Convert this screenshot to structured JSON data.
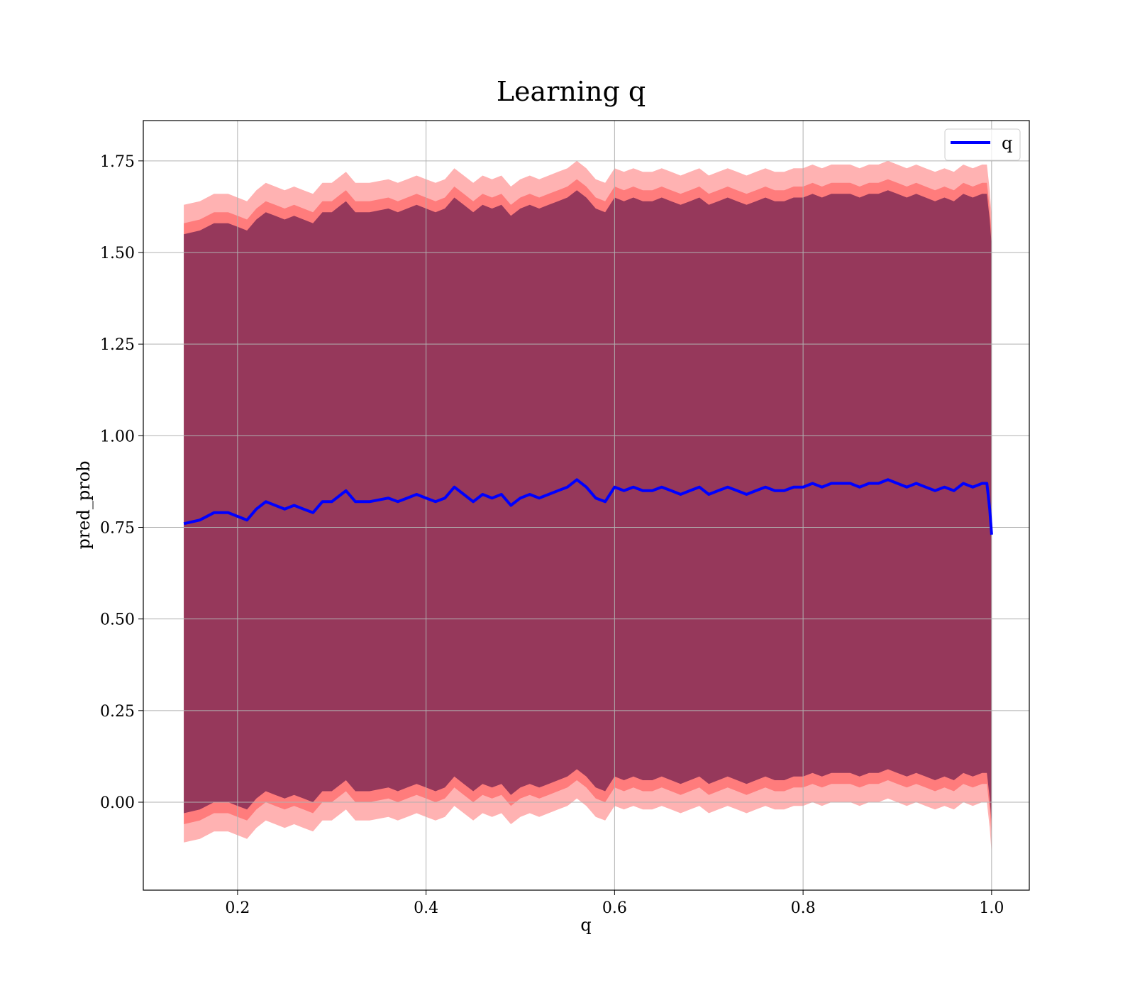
{
  "chart_data": {
    "type": "line",
    "title": "Learning q",
    "xlabel": "q",
    "ylabel": "pred_prob",
    "xlim": [
      0.1,
      1.04
    ],
    "ylim": [
      -0.24,
      1.86
    ],
    "grid": true,
    "legend": {
      "placement": "top-right",
      "entries": [
        "q"
      ]
    },
    "x_ticks": [
      0.2,
      0.4,
      0.6,
      0.8,
      1.0
    ],
    "x_tick_labels": [
      "0.2",
      "0.4",
      "0.6",
      "0.8",
      "1.0"
    ],
    "y_ticks": [
      0.0,
      0.25,
      0.5,
      0.75,
      1.0,
      1.25,
      1.5,
      1.75
    ],
    "y_tick_labels": [
      "0.00",
      "0.25",
      "0.50",
      "0.75",
      "1.00",
      "1.25",
      "1.50",
      "1.75"
    ],
    "series": [
      {
        "name": "q",
        "color": "#0000ff",
        "x": [
          0.143,
          0.16,
          0.175,
          0.19,
          0.2,
          0.21,
          0.22,
          0.23,
          0.24,
          0.25,
          0.26,
          0.27,
          0.28,
          0.29,
          0.3,
          0.31,
          0.315,
          0.325,
          0.34,
          0.36,
          0.37,
          0.38,
          0.39,
          0.4,
          0.41,
          0.42,
          0.43,
          0.44,
          0.45,
          0.46,
          0.47,
          0.48,
          0.49,
          0.5,
          0.51,
          0.52,
          0.53,
          0.54,
          0.55,
          0.56,
          0.57,
          0.58,
          0.59,
          0.6,
          0.61,
          0.62,
          0.63,
          0.64,
          0.65,
          0.66,
          0.67,
          0.68,
          0.69,
          0.7,
          0.71,
          0.72,
          0.73,
          0.74,
          0.75,
          0.76,
          0.77,
          0.78,
          0.79,
          0.8,
          0.81,
          0.82,
          0.83,
          0.84,
          0.85,
          0.86,
          0.87,
          0.88,
          0.89,
          0.9,
          0.91,
          0.92,
          0.93,
          0.94,
          0.95,
          0.96,
          0.97,
          0.98,
          0.99,
          0.995,
          0.998,
          1.0
        ],
        "values": [
          0.76,
          0.77,
          0.79,
          0.79,
          0.78,
          0.77,
          0.8,
          0.82,
          0.81,
          0.8,
          0.81,
          0.8,
          0.79,
          0.82,
          0.82,
          0.84,
          0.85,
          0.82,
          0.82,
          0.83,
          0.82,
          0.83,
          0.84,
          0.83,
          0.82,
          0.83,
          0.86,
          0.84,
          0.82,
          0.84,
          0.83,
          0.84,
          0.81,
          0.83,
          0.84,
          0.83,
          0.84,
          0.85,
          0.86,
          0.88,
          0.86,
          0.83,
          0.82,
          0.86,
          0.85,
          0.86,
          0.85,
          0.85,
          0.86,
          0.85,
          0.84,
          0.85,
          0.86,
          0.84,
          0.85,
          0.86,
          0.85,
          0.84,
          0.85,
          0.86,
          0.85,
          0.85,
          0.86,
          0.86,
          0.87,
          0.86,
          0.87,
          0.87,
          0.87,
          0.86,
          0.87,
          0.87,
          0.88,
          0.87,
          0.86,
          0.87,
          0.86,
          0.85,
          0.86,
          0.85,
          0.87,
          0.86,
          0.87,
          0.87,
          0.8,
          0.73
        ]
      }
    ],
    "bands": [
      {
        "color": "#ff0000",
        "opacity": 0.3,
        "offset": 0.87
      },
      {
        "color": "#ff0000",
        "opacity": 0.3,
        "offset": 0.82
      },
      {
        "color": "#400040",
        "opacity": 0.55,
        "offset": 0.79
      }
    ]
  }
}
